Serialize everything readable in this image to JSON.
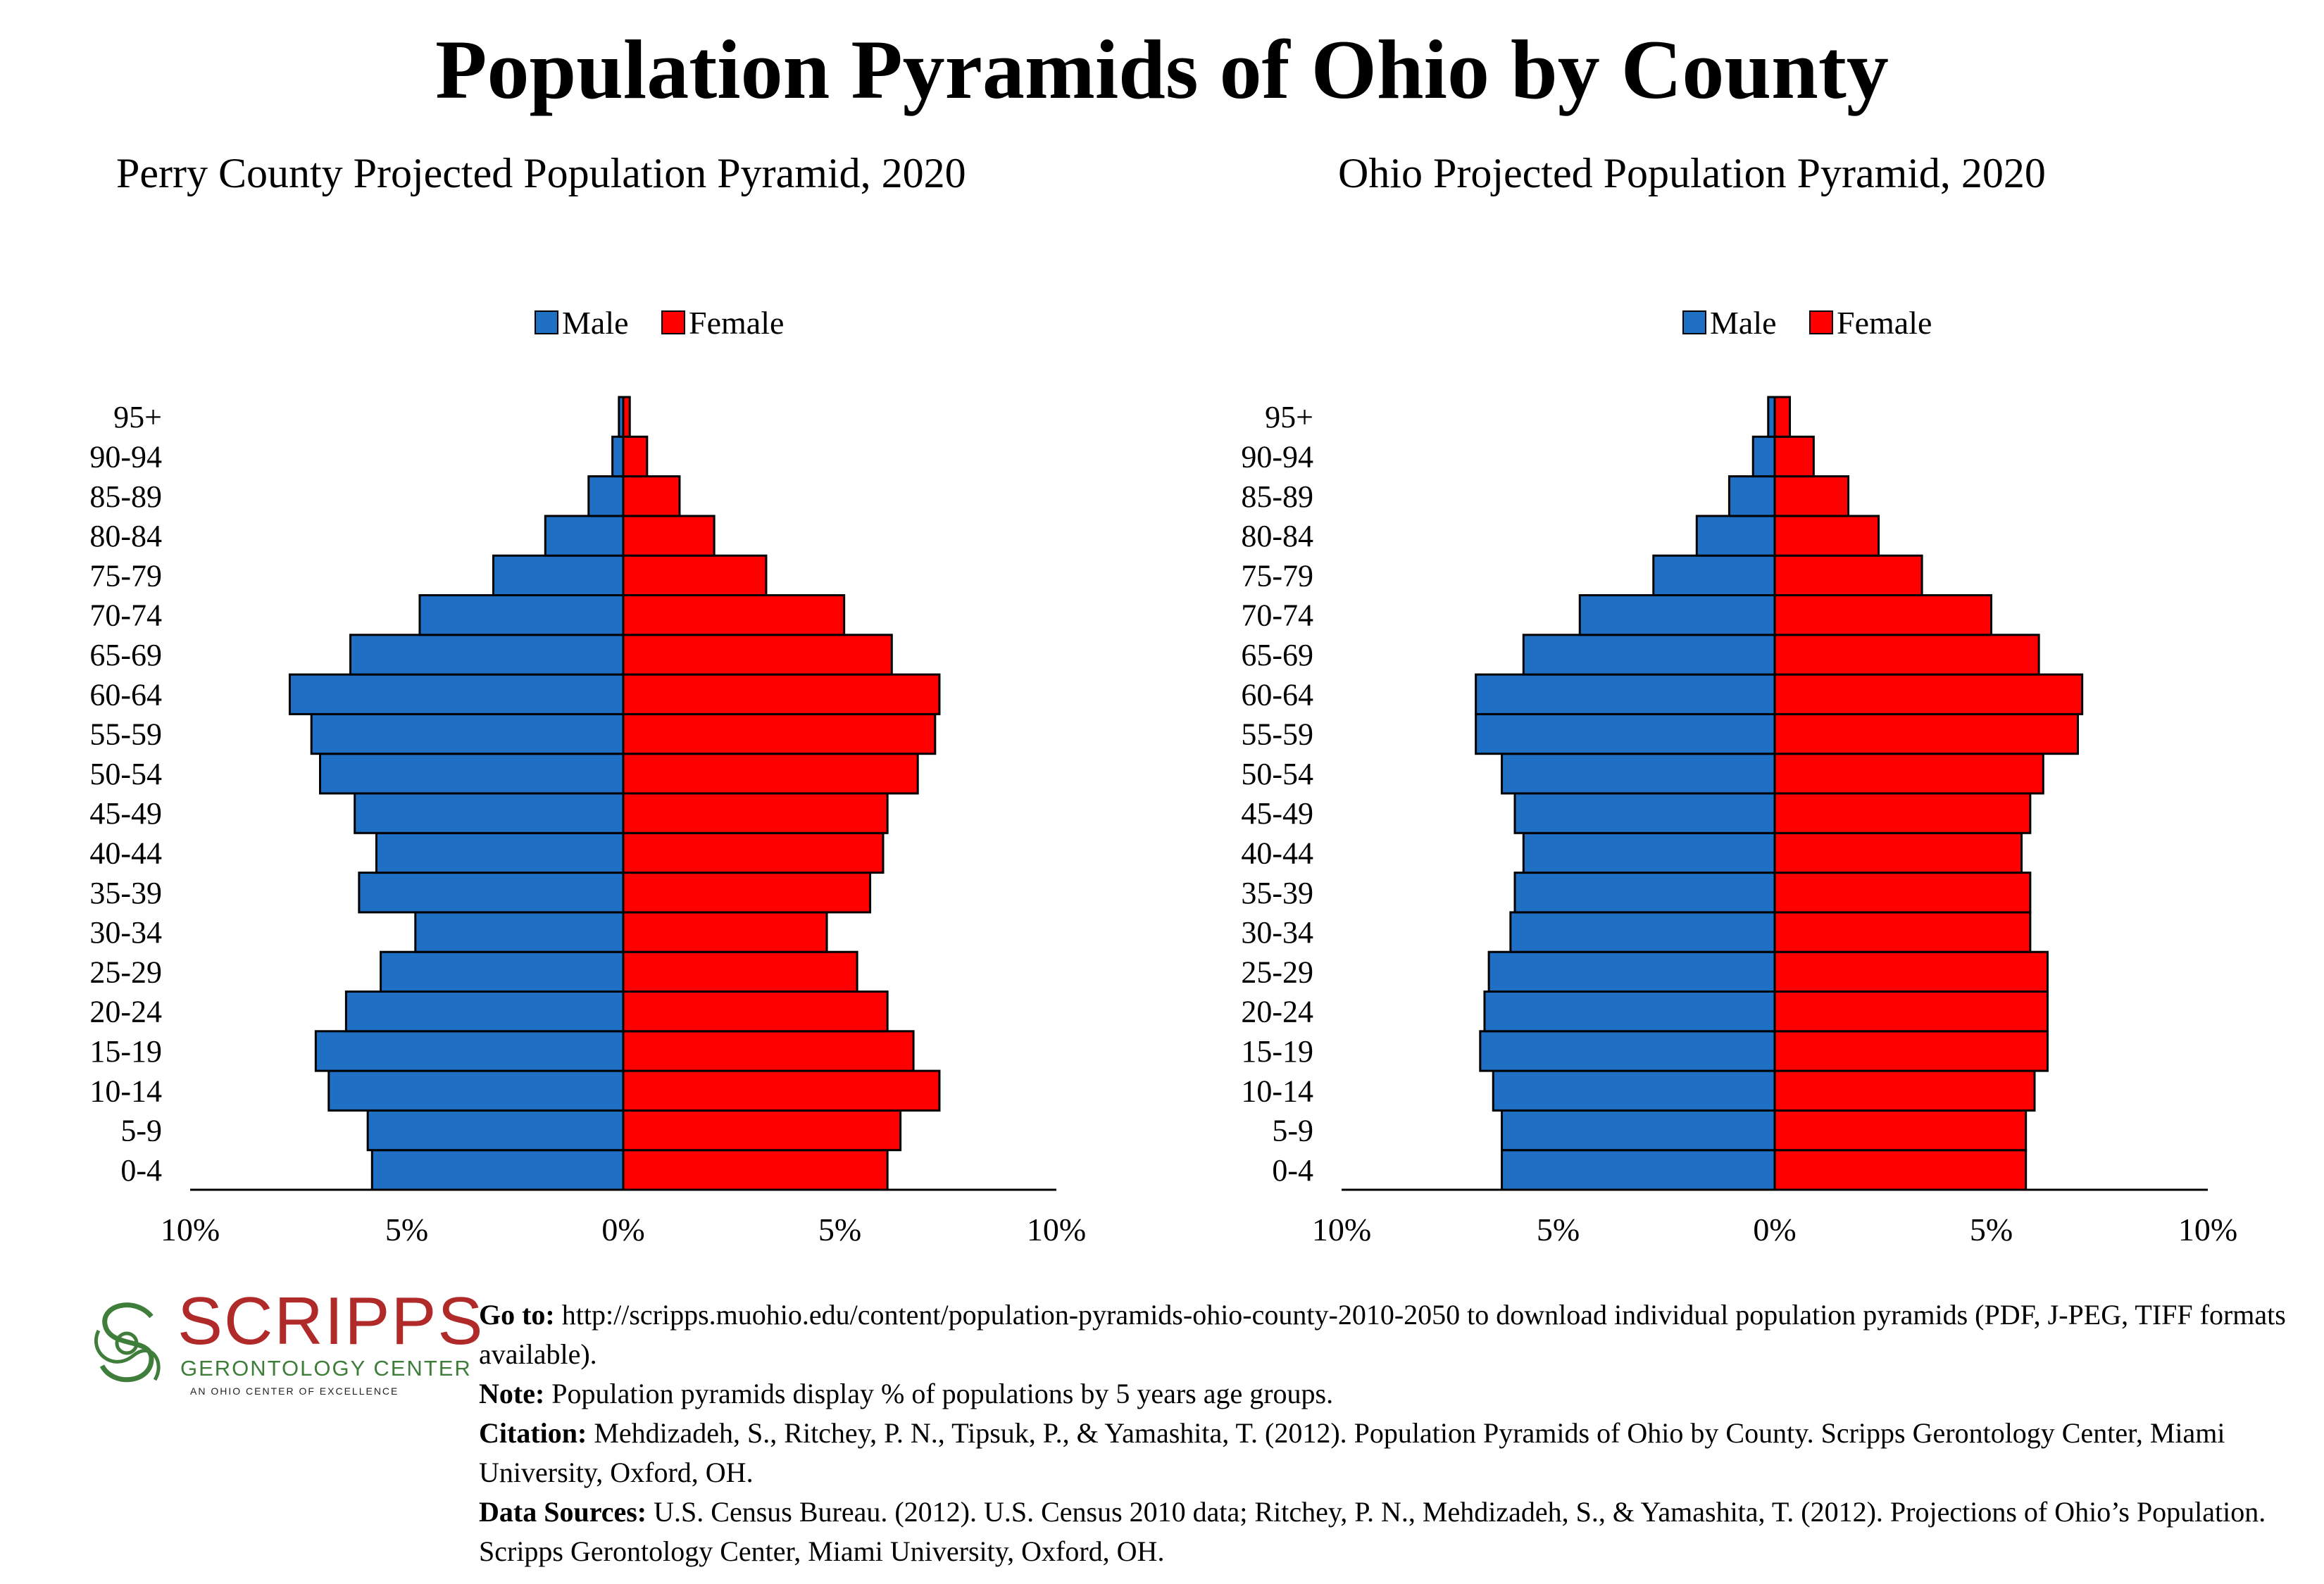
{
  "header": {
    "title": "Population Pyramids of Ohio by County"
  },
  "chart_data": [
    {
      "type": "bar",
      "title": "Perry County Projected Population Pyramid, 2020",
      "categories": [
        "0-4",
        "5-9",
        "10-14",
        "15-19",
        "20-24",
        "25-29",
        "30-34",
        "35-39",
        "40-44",
        "45-49",
        "50-54",
        "55-59",
        "60-64",
        "65-69",
        "70-74",
        "75-79",
        "80-84",
        "85-89",
        "90-94",
        "95+"
      ],
      "series": [
        {
          "name": "Male",
          "color": "#1f6fc4",
          "values": [
            5.8,
            5.9,
            6.8,
            7.1,
            6.4,
            5.6,
            4.8,
            6.1,
            5.7,
            6.2,
            7.0,
            7.2,
            7.7,
            6.3,
            4.7,
            3.0,
            1.8,
            0.8,
            0.25,
            0.1
          ]
        },
        {
          "name": "Female",
          "color": "#ff0000",
          "values": [
            6.1,
            6.4,
            7.3,
            6.7,
            6.1,
            5.4,
            4.7,
            5.7,
            6.0,
            6.1,
            6.8,
            7.2,
            7.3,
            6.2,
            5.1,
            3.3,
            2.1,
            1.3,
            0.55,
            0.15
          ]
        }
      ],
      "xlim": [
        -10,
        10
      ],
      "xtick_labels": [
        "10%",
        "5%",
        "0%",
        "5%",
        "10%"
      ],
      "legend": "top-center"
    },
    {
      "type": "bar",
      "title": "Ohio Projected Population Pyramid, 2020",
      "categories": [
        "0-4",
        "5-9",
        "10-14",
        "15-19",
        "20-24",
        "25-29",
        "30-34",
        "35-39",
        "40-44",
        "45-49",
        "50-54",
        "55-59",
        "60-64",
        "65-69",
        "70-74",
        "75-79",
        "80-84",
        "85-89",
        "90-94",
        "95+"
      ],
      "series": [
        {
          "name": "Male",
          "color": "#1f6fc4",
          "values": [
            6.3,
            6.3,
            6.5,
            6.8,
            6.7,
            6.6,
            6.1,
            6.0,
            5.8,
            6.0,
            6.3,
            6.9,
            6.9,
            5.8,
            4.5,
            2.8,
            1.8,
            1.05,
            0.5,
            0.15
          ]
        },
        {
          "name": "Female",
          "color": "#ff0000",
          "values": [
            5.8,
            5.8,
            6.0,
            6.3,
            6.3,
            6.3,
            5.9,
            5.9,
            5.7,
            5.9,
            6.2,
            7.0,
            7.1,
            6.1,
            5.0,
            3.4,
            2.4,
            1.7,
            0.9,
            0.35
          ]
        }
      ],
      "xlim": [
        -10,
        10
      ],
      "xtick_labels": [
        "10%",
        "5%",
        "0%",
        "5%",
        "10%"
      ],
      "legend": "top-center"
    }
  ],
  "logo": {
    "word": "SCRIPPS",
    "subtitle": "GERONTOLOGY CENTER",
    "tagline": "AN OHIO CENTER OF EXCELLENCE"
  },
  "notes": {
    "goto_label": "Go to:",
    "goto_text": " http://scripps.muohio.edu/content/population-pyramids-ohio-county-2010-2050 to download individual population pyramids (PDF, J-PEG, TIFF formats available).",
    "note_label": "Note:",
    "note_text": " Population pyramids display % of populations by 5 years age groups.",
    "citation_label": "Citation:",
    "citation_text": " Mehdizadeh, S., Ritchey, P. N., Tipsuk, P., & Yamashita, T. (2012). Population Pyramids of Ohio by County. Scripps Gerontology Center, Miami University, Oxford, OH.",
    "sources_label": "Data Sources:",
    "sources_text": " U.S. Census Bureau. (2012). U.S. Census 2010 data; Ritchey, P. N., Mehdizadeh, S., & Yamashita, T. (2012). Projections of Ohio’s Population. Scripps Gerontology Center, Miami University, Oxford, OH."
  }
}
